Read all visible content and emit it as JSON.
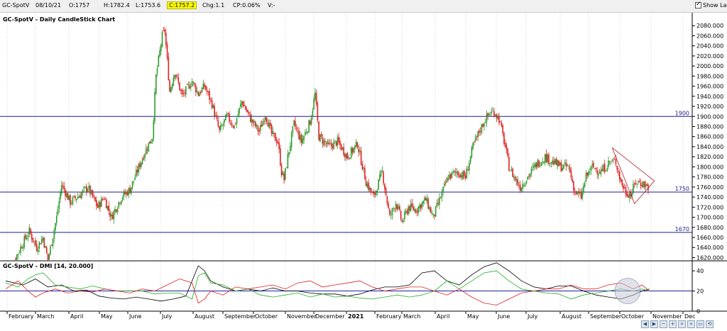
{
  "header": {
    "symbol": "GC-SpotV",
    "date": "08/10/21",
    "open": "O:1757",
    "high": "H:1782.4",
    "low": "L:1753.6",
    "close": "C:1757.2",
    "change": "Chg:1.1",
    "change_pct": "CP:0.06%",
    "volume": "V:-",
    "show_last_label": "Show Last"
  },
  "colors": {
    "up": "#2e9a2e",
    "down": "#e02020",
    "hline": "#1c1c8a",
    "trendline": "#b02020",
    "adx": "#000000",
    "plus_di": "#22b022",
    "minus_di": "#e02020",
    "dmi_ref": "#2020aa"
  },
  "chart_data": [
    {
      "type": "candlestick",
      "title": "GC-SpotV - Daily CandleStick Chart",
      "ylim": [
        1615,
        2100
      ],
      "yticks": [
        1620,
        1640,
        1660,
        1680,
        1700,
        1720,
        1740,
        1760,
        1780,
        1800,
        1820,
        1840,
        1860,
        1880,
        1900,
        1920,
        1940,
        1960,
        1980,
        2000,
        2020,
        2040,
        2060,
        2080
      ],
      "y_tick_format": "0.000",
      "x_labels": [
        "February",
        "March",
        "April",
        "May",
        "June",
        "July",
        "August",
        "September",
        "October",
        "November",
        "December",
        "2021",
        "February",
        "March",
        "April",
        "May",
        "June",
        "July",
        "August",
        "September",
        "October",
        "November",
        "Dec"
      ],
      "horizontal_lines": [
        {
          "value": 1900,
          "label": "1900"
        },
        {
          "value": 1750,
          "label": "1750"
        },
        {
          "value": 1670,
          "label": "1670"
        }
      ],
      "close_path": [
        [
          0,
          1590
        ],
        [
          8,
          1620
        ],
        [
          14,
          1650
        ],
        [
          19,
          1672
        ],
        [
          25,
          1640
        ],
        [
          30,
          1660
        ],
        [
          34,
          1615
        ],
        [
          41,
          1700
        ],
        [
          45,
          1765
        ],
        [
          52,
          1730
        ],
        [
          60,
          1745
        ],
        [
          66,
          1760
        ],
        [
          74,
          1720
        ],
        [
          79,
          1740
        ],
        [
          85,
          1700
        ],
        [
          93,
          1740
        ],
        [
          100,
          1755
        ],
        [
          104,
          1780
        ],
        [
          112,
          1830
        ],
        [
          118,
          1860
        ],
        [
          121,
          1980
        ],
        [
          126,
          2060
        ],
        [
          128,
          2070
        ],
        [
          132,
          1950
        ],
        [
          136,
          1990
        ],
        [
          142,
          1940
        ],
        [
          150,
          1970
        ],
        [
          155,
          1945
        ],
        [
          160,
          1960
        ],
        [
          166,
          1925
        ],
        [
          172,
          1870
        ],
        [
          178,
          1900
        ],
        [
          184,
          1880
        ],
        [
          190,
          1930
        ],
        [
          197,
          1895
        ],
        [
          204,
          1870
        ],
        [
          209,
          1905
        ],
        [
          214,
          1865
        ],
        [
          219,
          1850
        ],
        [
          222,
          1790
        ],
        [
          224,
          1775
        ],
        [
          227,
          1820
        ],
        [
          232,
          1885
        ],
        [
          238,
          1850
        ],
        [
          245,
          1890
        ],
        [
          249,
          1945
        ],
        [
          252,
          1860
        ],
        [
          260,
          1840
        ],
        [
          267,
          1850
        ],
        [
          275,
          1820
        ],
        [
          283,
          1845
        ],
        [
          290,
          1770
        ],
        [
          296,
          1740
        ],
        [
          303,
          1790
        ],
        [
          309,
          1700
        ],
        [
          314,
          1730
        ],
        [
          319,
          1690
        ],
        [
          324,
          1720
        ],
        [
          330,
          1715
        ],
        [
          338,
          1735
        ],
        [
          344,
          1700
        ],
        [
          350,
          1740
        ],
        [
          356,
          1780
        ],
        [
          363,
          1790
        ],
        [
          370,
          1780
        ],
        [
          376,
          1840
        ],
        [
          381,
          1870
        ],
        [
          385,
          1890
        ],
        [
          389,
          1905
        ],
        [
          393,
          1910
        ],
        [
          397,
          1895
        ],
        [
          402,
          1840
        ],
        [
          405,
          1800
        ],
        [
          409,
          1780
        ],
        [
          414,
          1760
        ],
        [
          420,
          1780
        ],
        [
          427,
          1805
        ],
        [
          434,
          1820
        ],
        [
          440,
          1810
        ],
        [
          447,
          1800
        ],
        [
          453,
          1800
        ],
        [
          458,
          1750
        ],
        [
          463,
          1740
        ],
        [
          467,
          1780
        ],
        [
          472,
          1800
        ],
        [
          479,
          1790
        ],
        [
          486,
          1810
        ],
        [
          491,
          1810
        ],
        [
          495,
          1770
        ],
        [
          499,
          1750
        ],
        [
          503,
          1745
        ],
        [
          507,
          1770
        ],
        [
          512,
          1768
        ],
        [
          517,
          1760
        ]
      ],
      "trendline": [
        [
          488,
          1838
        ],
        [
          522,
          1772
        ],
        [
          506,
          1727
        ]
      ]
    },
    {
      "type": "line",
      "title": "GC-SpotV - DMI [14, 20.000]",
      "ylim": [
        0,
        45
      ],
      "yticks": [
        0,
        20,
        40
      ],
      "reference_line": 20,
      "series": [
        {
          "values": [
            [
              0,
              30
            ],
            [
              14,
              26
            ],
            [
              24,
              32
            ],
            [
              34,
              24
            ],
            [
              45,
              26
            ],
            [
              55,
              20
            ],
            [
              65,
              21
            ],
            [
              75,
              15
            ],
            [
              85,
              13
            ],
            [
              95,
              12
            ],
            [
              105,
              14
            ],
            [
              115,
              12
            ],
            [
              125,
              10
            ],
            [
              135,
              12
            ],
            [
              145,
              15
            ],
            [
              155,
              45
            ],
            [
              160,
              40
            ],
            [
              165,
              30
            ],
            [
              175,
              24
            ],
            [
              185,
              20
            ],
            [
              195,
              22
            ],
            [
              205,
              20
            ],
            [
              215,
              23
            ],
            [
              225,
              20
            ],
            [
              235,
              20
            ],
            [
              245,
              18
            ],
            [
              255,
              17
            ],
            [
              265,
              17
            ],
            [
              275,
              15
            ],
            [
              285,
              17
            ],
            [
              295,
              21
            ],
            [
              305,
              24
            ],
            [
              315,
              24
            ],
            [
              325,
              26
            ],
            [
              335,
              38
            ],
            [
              345,
              40
            ],
            [
              355,
              30
            ],
            [
              365,
              26
            ],
            [
              375,
              36
            ],
            [
              385,
              44
            ],
            [
              395,
              48
            ],
            [
              405,
              40
            ],
            [
              415,
              30
            ],
            [
              425,
              24
            ],
            [
              435,
              22
            ],
            [
              445,
              25
            ],
            [
              455,
              25
            ],
            [
              465,
              20
            ],
            [
              475,
              16
            ],
            [
              485,
              14
            ],
            [
              495,
              12
            ],
            [
              505,
              16
            ],
            [
              512,
              20
            ],
            [
              518,
              22
            ]
          ]
        },
        {
          "values": [
            [
              0,
              28
            ],
            [
              10,
              24
            ],
            [
              18,
              32
            ],
            [
              24,
              36
            ],
            [
              30,
              38
            ],
            [
              40,
              26
            ],
            [
              50,
              24
            ],
            [
              60,
              22
            ],
            [
              70,
              25
            ],
            [
              80,
              22
            ],
            [
              90,
              20
            ],
            [
              100,
              20
            ],
            [
              110,
              20
            ],
            [
              120,
              17
            ],
            [
              130,
              18
            ],
            [
              140,
              18
            ],
            [
              150,
              12
            ],
            [
              155,
              35
            ],
            [
              160,
              38
            ],
            [
              165,
              28
            ],
            [
              175,
              26
            ],
            [
              185,
              20
            ],
            [
              195,
              22
            ],
            [
              205,
              16
            ],
            [
              215,
              14
            ],
            [
              225,
              16
            ],
            [
              235,
              18
            ],
            [
              245,
              14
            ],
            [
              255,
              17
            ],
            [
              265,
              14
            ],
            [
              275,
              15
            ],
            [
              285,
              13
            ],
            [
              295,
              12
            ],
            [
              305,
              14
            ],
            [
              315,
              16
            ],
            [
              325,
              14
            ],
            [
              335,
              16
            ],
            [
              345,
              20
            ],
            [
              355,
              30
            ],
            [
              365,
              22
            ],
            [
              375,
              30
            ],
            [
              385,
              38
            ],
            [
              395,
              40
            ],
            [
              405,
              30
            ],
            [
              415,
              22
            ],
            [
              425,
              20
            ],
            [
              435,
              18
            ],
            [
              445,
              17
            ],
            [
              455,
              12
            ],
            [
              465,
              16
            ],
            [
              475,
              18
            ],
            [
              485,
              20
            ],
            [
              495,
              22
            ],
            [
              505,
              20
            ],
            [
              512,
              22
            ],
            [
              518,
              20
            ]
          ]
        },
        {
          "values": [
            [
              0,
              22
            ],
            [
              10,
              30
            ],
            [
              18,
              20
            ],
            [
              24,
              14
            ],
            [
              30,
              18
            ],
            [
              40,
              22
            ],
            [
              50,
              18
            ],
            [
              60,
              20
            ],
            [
              70,
              19
            ],
            [
              80,
              22
            ],
            [
              90,
              20
            ],
            [
              100,
              18
            ],
            [
              110,
              22
            ],
            [
              120,
              20
            ],
            [
              130,
              26
            ],
            [
              140,
              32
            ],
            [
              150,
              28
            ],
            [
              155,
              8
            ],
            [
              160,
              12
            ],
            [
              165,
              20
            ],
            [
              175,
              16
            ],
            [
              185,
              24
            ],
            [
              195,
              22
            ],
            [
              205,
              24
            ],
            [
              215,
              26
            ],
            [
              225,
              22
            ],
            [
              235,
              28
            ],
            [
              245,
              30
            ],
            [
              255,
              24
            ],
            [
              265,
              26
            ],
            [
              275,
              28
            ],
            [
              285,
              30
            ],
            [
              295,
              24
            ],
            [
              305,
              20
            ],
            [
              315,
              22
            ],
            [
              325,
              24
            ],
            [
              335,
              24
            ],
            [
              345,
              20
            ],
            [
              355,
              16
            ],
            [
              365,
              22
            ],
            [
              375,
              14
            ],
            [
              385,
              8
            ],
            [
              395,
              6
            ],
            [
              405,
              12
            ],
            [
              415,
              18
            ],
            [
              425,
              20
            ],
            [
              435,
              22
            ],
            [
              445,
              22
            ],
            [
              455,
              26
            ],
            [
              465,
              22
            ],
            [
              475,
              22
            ],
            [
              485,
              26
            ],
            [
              495,
              28
            ],
            [
              505,
              22
            ],
            [
              512,
              26
            ],
            [
              518,
              20
            ]
          ]
        }
      ]
    }
  ]
}
